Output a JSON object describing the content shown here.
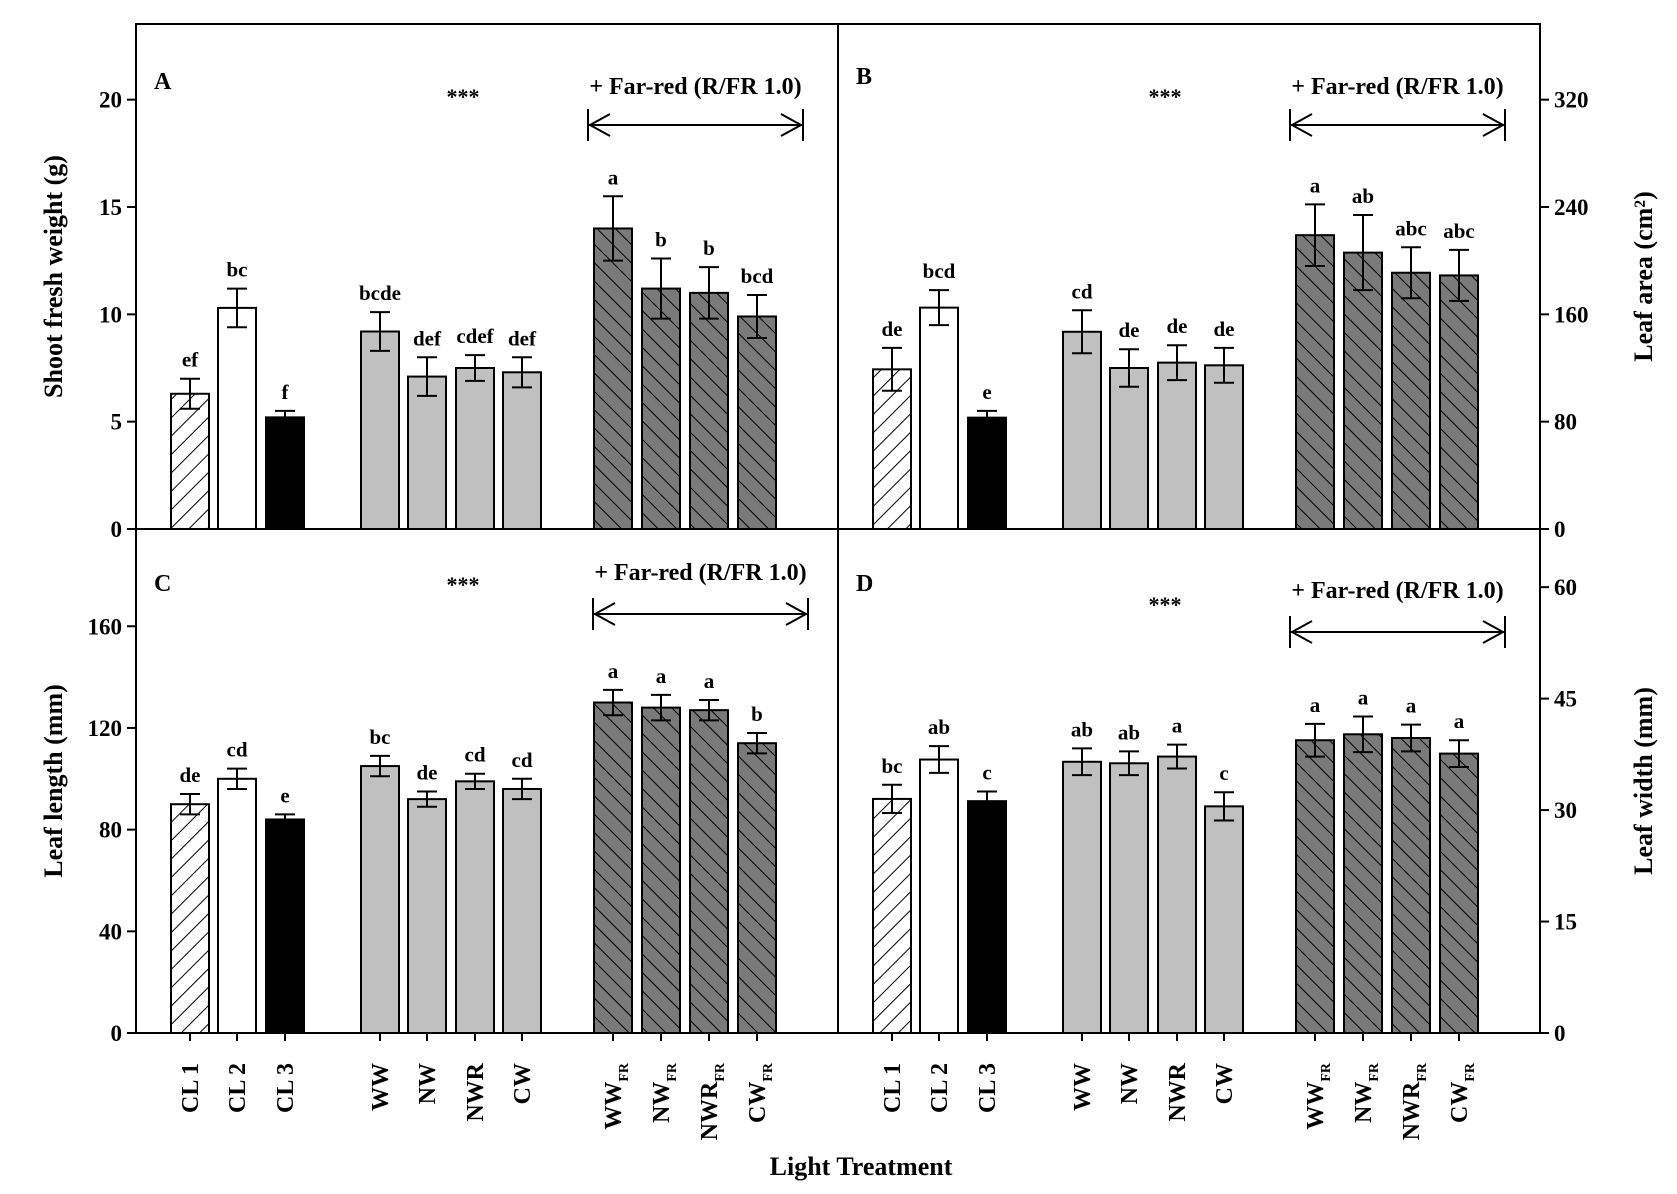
{
  "figure": {
    "x_axis_title": "Light Treatment",
    "categories": [
      {
        "main": "CL 1",
        "sub": ""
      },
      {
        "main": "CL 2",
        "sub": ""
      },
      {
        "main": "CL 3",
        "sub": ""
      },
      {
        "main": "WW",
        "sub": ""
      },
      {
        "main": "NW",
        "sub": ""
      },
      {
        "main": "NWR",
        "sub": ""
      },
      {
        "main": "CW",
        "sub": ""
      },
      {
        "main": "WW",
        "sub": "FR"
      },
      {
        "main": "NW",
        "sub": "FR"
      },
      {
        "main": "NWR",
        "sub": "FR"
      },
      {
        "main": "CW",
        "sub": "FR"
      }
    ],
    "group_styles": [
      "hatch-light",
      "white",
      "black",
      "gray",
      "gray",
      "gray",
      "gray",
      "hatch-dark",
      "hatch-dark",
      "hatch-dark",
      "hatch-dark"
    ],
    "colors": {
      "gray": "#c0c0c0",
      "dark": "#7a7a7a",
      "black": "#000000",
      "white": "#ffffff"
    }
  },
  "chart_data": [
    {
      "type": "bar",
      "panel": "A",
      "ylabel": "Shoot fresh weight (g)",
      "ylabel_side": "left",
      "ylim": [
        0,
        22.5
      ],
      "yticks": [
        0,
        5,
        10,
        15,
        20
      ],
      "stars": "***",
      "far_red_label": "+ Far-red (R/FR 1.0)",
      "values": [
        6.3,
        10.3,
        5.2,
        9.2,
        7.1,
        7.5,
        7.3,
        14.0,
        11.2,
        11.0,
        9.9
      ],
      "errors": [
        0.7,
        0.9,
        0.3,
        0.9,
        0.9,
        0.6,
        0.7,
        1.5,
        1.4,
        1.2,
        1.0
      ],
      "letters": [
        "ef",
        "bc",
        "f",
        "bcde",
        "def",
        "cdef",
        "def",
        "a",
        "b",
        "b",
        "bcd"
      ]
    },
    {
      "type": "bar",
      "panel": "B",
      "ylabel": "Leaf area (cm²)",
      "ylabel_side": "right",
      "ylim": [
        0,
        360
      ],
      "yticks": [
        0,
        80,
        160,
        240,
        320
      ],
      "stars": "***",
      "far_red_label": "+ Far-red (R/FR 1.0)",
      "values": [
        119,
        165,
        83,
        147,
        120,
        124,
        122,
        219,
        206,
        191,
        189
      ],
      "errors": [
        16,
        13,
        5,
        16,
        14,
        13,
        13,
        23,
        28,
        19,
        19
      ],
      "letters": [
        "de",
        "bcd",
        "e",
        "cd",
        "de",
        "de",
        "de",
        "a",
        "ab",
        "abc",
        "abc"
      ]
    },
    {
      "type": "bar",
      "panel": "C",
      "ylabel": "Leaf length (mm)",
      "ylabel_side": "left",
      "ylim": [
        0,
        190
      ],
      "yticks": [
        0,
        40,
        80,
        120,
        160
      ],
      "stars": "***",
      "far_red_label": "+ Far-red (R/FR 1.0)",
      "values": [
        90,
        100,
        84,
        105,
        92,
        99,
        96,
        130,
        128,
        127,
        114
      ],
      "errors": [
        4,
        4,
        2,
        4,
        3,
        3,
        4,
        5,
        5,
        4,
        4
      ],
      "letters": [
        "de",
        "cd",
        "e",
        "bc",
        "de",
        "cd",
        "cd",
        "a",
        "a",
        "a",
        "b"
      ]
    },
    {
      "type": "bar",
      "panel": "D",
      "ylabel": "Leaf width (mm)",
      "ylabel_side": "right",
      "ylim": [
        0,
        65
      ],
      "yticks": [
        0,
        15,
        30,
        45,
        60
      ],
      "stars": "***",
      "far_red_label": "+ Far-red (R/FR 1.0)",
      "values": [
        31.5,
        36.8,
        31.2,
        36.5,
        36.3,
        37.2,
        30.5,
        39.4,
        40.2,
        39.7,
        37.6
      ],
      "errors": [
        1.9,
        1.8,
        1.3,
        1.8,
        1.6,
        1.6,
        1.9,
        2.2,
        2.4,
        1.8,
        1.8
      ],
      "letters": [
        "bc",
        "ab",
        "c",
        "ab",
        "ab",
        "a",
        "c",
        "a",
        "a",
        "a",
        "a"
      ]
    }
  ]
}
